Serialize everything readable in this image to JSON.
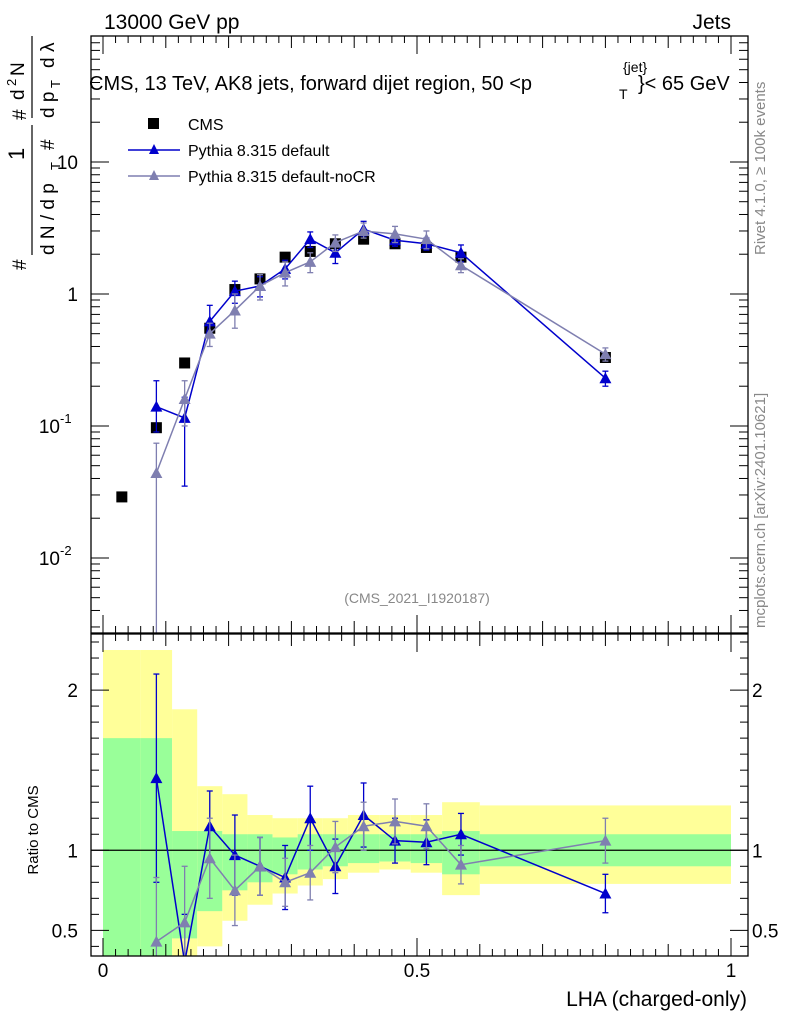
{
  "header": {
    "left": "13000 GeV pp",
    "right": "Jets"
  },
  "title": "CMS, 13 TeV, AK8 jets, forward dijet region, 50 <p",
  "title_sup": "{jet}",
  "title_sub": "T",
  "title_end": "}< 65 GeV",
  "watermark": "(CMS_2021_I1920187)",
  "side_text_rivet": "Rivet 4.1.0, ≥ 100k events",
  "side_text_mcplots": "mcplots.cern.ch [arXiv:2401.10621]",
  "ylabel_top": "1/N dN/dpT dλ (ROOT-style stacked label)",
  "ylabel_ratio": "Ratio to CMS",
  "xlabel": "LHA (charged-only)",
  "legend": [
    "CMS",
    "Pythia 8.315 default",
    "Pythia 8.315 default-noCR"
  ],
  "colors": {
    "cms": "#000000",
    "default": "#0000cc",
    "nocr": "#7f7fb0",
    "band_inner": "#99ff99",
    "band_outer": "#ffff99"
  },
  "chart_data": [
    {
      "type": "line",
      "name": "main",
      "yscale": "log",
      "xlim": [
        0,
        1
      ],
      "ylim": [
        0.0027,
        90
      ],
      "ytick_labels": [
        {
          "value": 0.01,
          "label": "10",
          "exp": "-2"
        },
        {
          "value": 0.1,
          "label": "10",
          "exp": "-1"
        },
        {
          "value": 1,
          "label": "1",
          "exp": ""
        },
        {
          "value": 10,
          "label": "10",
          "exp": ""
        }
      ],
      "series": [
        {
          "name": "CMS",
          "marker": "square",
          "x": [
            0.03,
            0.085,
            0.13,
            0.17,
            0.21,
            0.25,
            0.29,
            0.33,
            0.37,
            0.415,
            0.465,
            0.515,
            0.57,
            0.8
          ],
          "y": [
            0.029,
            0.097,
            0.3,
            0.55,
            1.08,
            1.3,
            1.9,
            2.1,
            2.4,
            2.6,
            2.4,
            2.25,
            1.9,
            0.33
          ],
          "err": [
            0,
            0,
            0,
            0,
            0,
            0,
            0,
            0,
            0,
            0,
            0,
            0,
            0,
            0
          ]
        },
        {
          "name": "Pythia 8.315 default",
          "marker": "triangle",
          "x": [
            0.085,
            0.13,
            0.17,
            0.21,
            0.25,
            0.29,
            0.33,
            0.37,
            0.415,
            0.465,
            0.515,
            0.57,
            0.8
          ],
          "y": [
            0.14,
            0.115,
            0.62,
            1.05,
            1.15,
            1.55,
            2.6,
            2.05,
            3.1,
            2.55,
            2.4,
            2.05,
            0.23
          ],
          "err_lo": [
            0.05,
            0.08,
            0.1,
            0.2,
            0.2,
            0.25,
            0.35,
            0.35,
            0.35,
            0.25,
            0.25,
            0.3,
            0.03
          ],
          "err_hi": [
            0.08,
            0.05,
            0.2,
            0.2,
            0.2,
            0.25,
            0.35,
            0.35,
            0.45,
            0.3,
            0.25,
            0.3,
            0.03
          ]
        },
        {
          "name": "Pythia 8.315 default-noCR",
          "marker": "triangle",
          "x": [
            0.085,
            0.13,
            0.17,
            0.21,
            0.25,
            0.29,
            0.33,
            0.37,
            0.415,
            0.465,
            0.515,
            0.57,
            0.8
          ],
          "y": [
            0.044,
            0.16,
            0.5,
            0.75,
            1.15,
            1.45,
            1.75,
            2.45,
            3.0,
            2.85,
            2.6,
            1.65,
            0.35
          ],
          "err_lo": [
            0.042,
            0.06,
            0.1,
            0.2,
            0.25,
            0.3,
            0.3,
            0.35,
            0.35,
            0.4,
            0.4,
            0.2,
            0.04
          ],
          "err_hi": [
            0.03,
            0.06,
            0.1,
            0.25,
            0.25,
            0.3,
            0.3,
            0.35,
            0.45,
            0.4,
            0.4,
            0.2,
            0.04
          ]
        }
      ]
    },
    {
      "type": "line",
      "name": "ratio",
      "xlim": [
        0,
        1
      ],
      "ylim": [
        0.34,
        2.35
      ],
      "xticks": [
        0,
        0.5,
        1
      ],
      "xtick_labels": [
        "0",
        "0.5",
        "1"
      ],
      "yticks": [
        0.5,
        1,
        2
      ],
      "ytick_labels": [
        "0.5",
        "1",
        "2"
      ],
      "reference_line": 1,
      "bands": {
        "edges": [
          0,
          0.06,
          0.11,
          0.15,
          0.19,
          0.23,
          0.27,
          0.31,
          0.35,
          0.39,
          0.44,
          0.49,
          0.54,
          0.6,
          1.0
        ],
        "inner_lo": [
          0.0,
          0.0,
          0.45,
          0.62,
          0.75,
          0.8,
          0.85,
          0.88,
          0.9,
          0.92,
          0.93,
          0.92,
          0.85,
          0.9
        ],
        "inner_hi": [
          1.7,
          1.7,
          1.12,
          1.12,
          1.1,
          1.1,
          1.08,
          1.1,
          1.1,
          1.1,
          1.1,
          1.1,
          1.12,
          1.1
        ],
        "outer_lo": [
          0.0,
          0.0,
          0.0,
          0.4,
          0.56,
          0.66,
          0.73,
          0.78,
          0.82,
          0.86,
          0.88,
          0.86,
          0.72,
          0.79
        ],
        "outer_hi": [
          2.25,
          2.25,
          1.88,
          1.4,
          1.35,
          1.22,
          1.2,
          1.2,
          1.2,
          1.22,
          1.22,
          1.22,
          1.3,
          1.28
        ]
      },
      "series": [
        {
          "name": "Pythia 8.315 default",
          "x": [
            0.085,
            0.13,
            0.17,
            0.21,
            0.25,
            0.29,
            0.33,
            0.37,
            0.415,
            0.465,
            0.515,
            0.57,
            0.8
          ],
          "y": [
            1.45,
            0.3,
            1.15,
            0.97,
            0.9,
            0.83,
            1.2,
            0.9,
            1.22,
            1.06,
            1.05,
            1.1,
            0.73
          ],
          "err": [
            0.65,
            0.3,
            0.22,
            0.25,
            0.18,
            0.2,
            0.2,
            0.17,
            0.2,
            0.14,
            0.14,
            0.13,
            0.12
          ]
        },
        {
          "name": "Pythia 8.315 default-noCR",
          "x": [
            0.085,
            0.13,
            0.17,
            0.21,
            0.25,
            0.29,
            0.33,
            0.37,
            0.415,
            0.465,
            0.515,
            0.57,
            0.8
          ],
          "y": [
            0.43,
            0.55,
            0.95,
            0.75,
            0.9,
            0.8,
            0.86,
            1.02,
            1.15,
            1.18,
            1.15,
            0.91,
            1.06
          ],
          "err": [
            0.4,
            0.35,
            0.25,
            0.22,
            0.18,
            0.15,
            0.17,
            0.16,
            0.15,
            0.14,
            0.14,
            0.12,
            0.14
          ]
        }
      ]
    }
  ]
}
